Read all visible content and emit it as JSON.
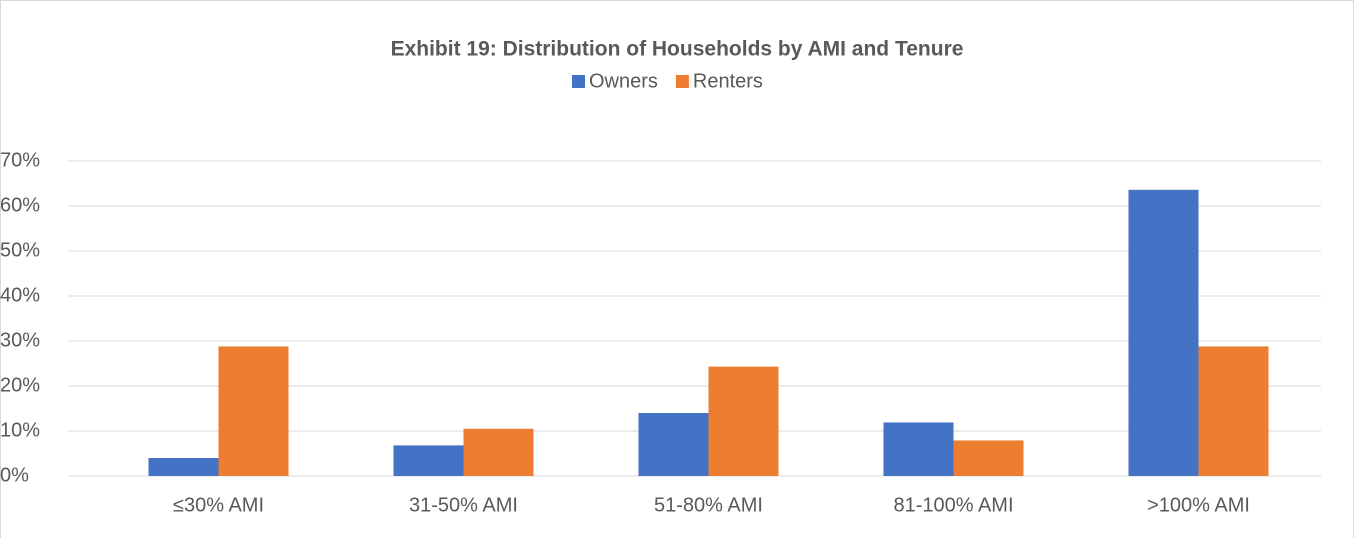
{
  "chart_data": {
    "type": "bar",
    "title": "Exhibit 19: Distribution of Households by AMI and Tenure",
    "categories": [
      "≤30% AMI",
      "31-50% AMI",
      "51-80% AMI",
      "81-100% AMI",
      ">100% AMI"
    ],
    "series": [
      {
        "name": "Owners",
        "color": "#4472c4",
        "values": [
          4.0,
          6.8,
          14.0,
          11.9,
          63.6
        ]
      },
      {
        "name": "Renters",
        "color": "#ed7d31",
        "values": [
          28.8,
          10.5,
          24.3,
          7.9,
          28.8
        ]
      }
    ],
    "ylim": [
      0,
      70
    ],
    "yticks": [
      {
        "value": 0,
        "label": "0%"
      },
      {
        "value": 10,
        "label": "10%"
      },
      {
        "value": 20,
        "label": "20%"
      },
      {
        "value": 30,
        "label": "30%"
      },
      {
        "value": 40,
        "label": "40%"
      },
      {
        "value": 50,
        "label": "50%"
      },
      {
        "value": 60,
        "label": "60%"
      },
      {
        "value": 70,
        "label": "70%"
      }
    ],
    "grid": true,
    "legend": "top"
  }
}
